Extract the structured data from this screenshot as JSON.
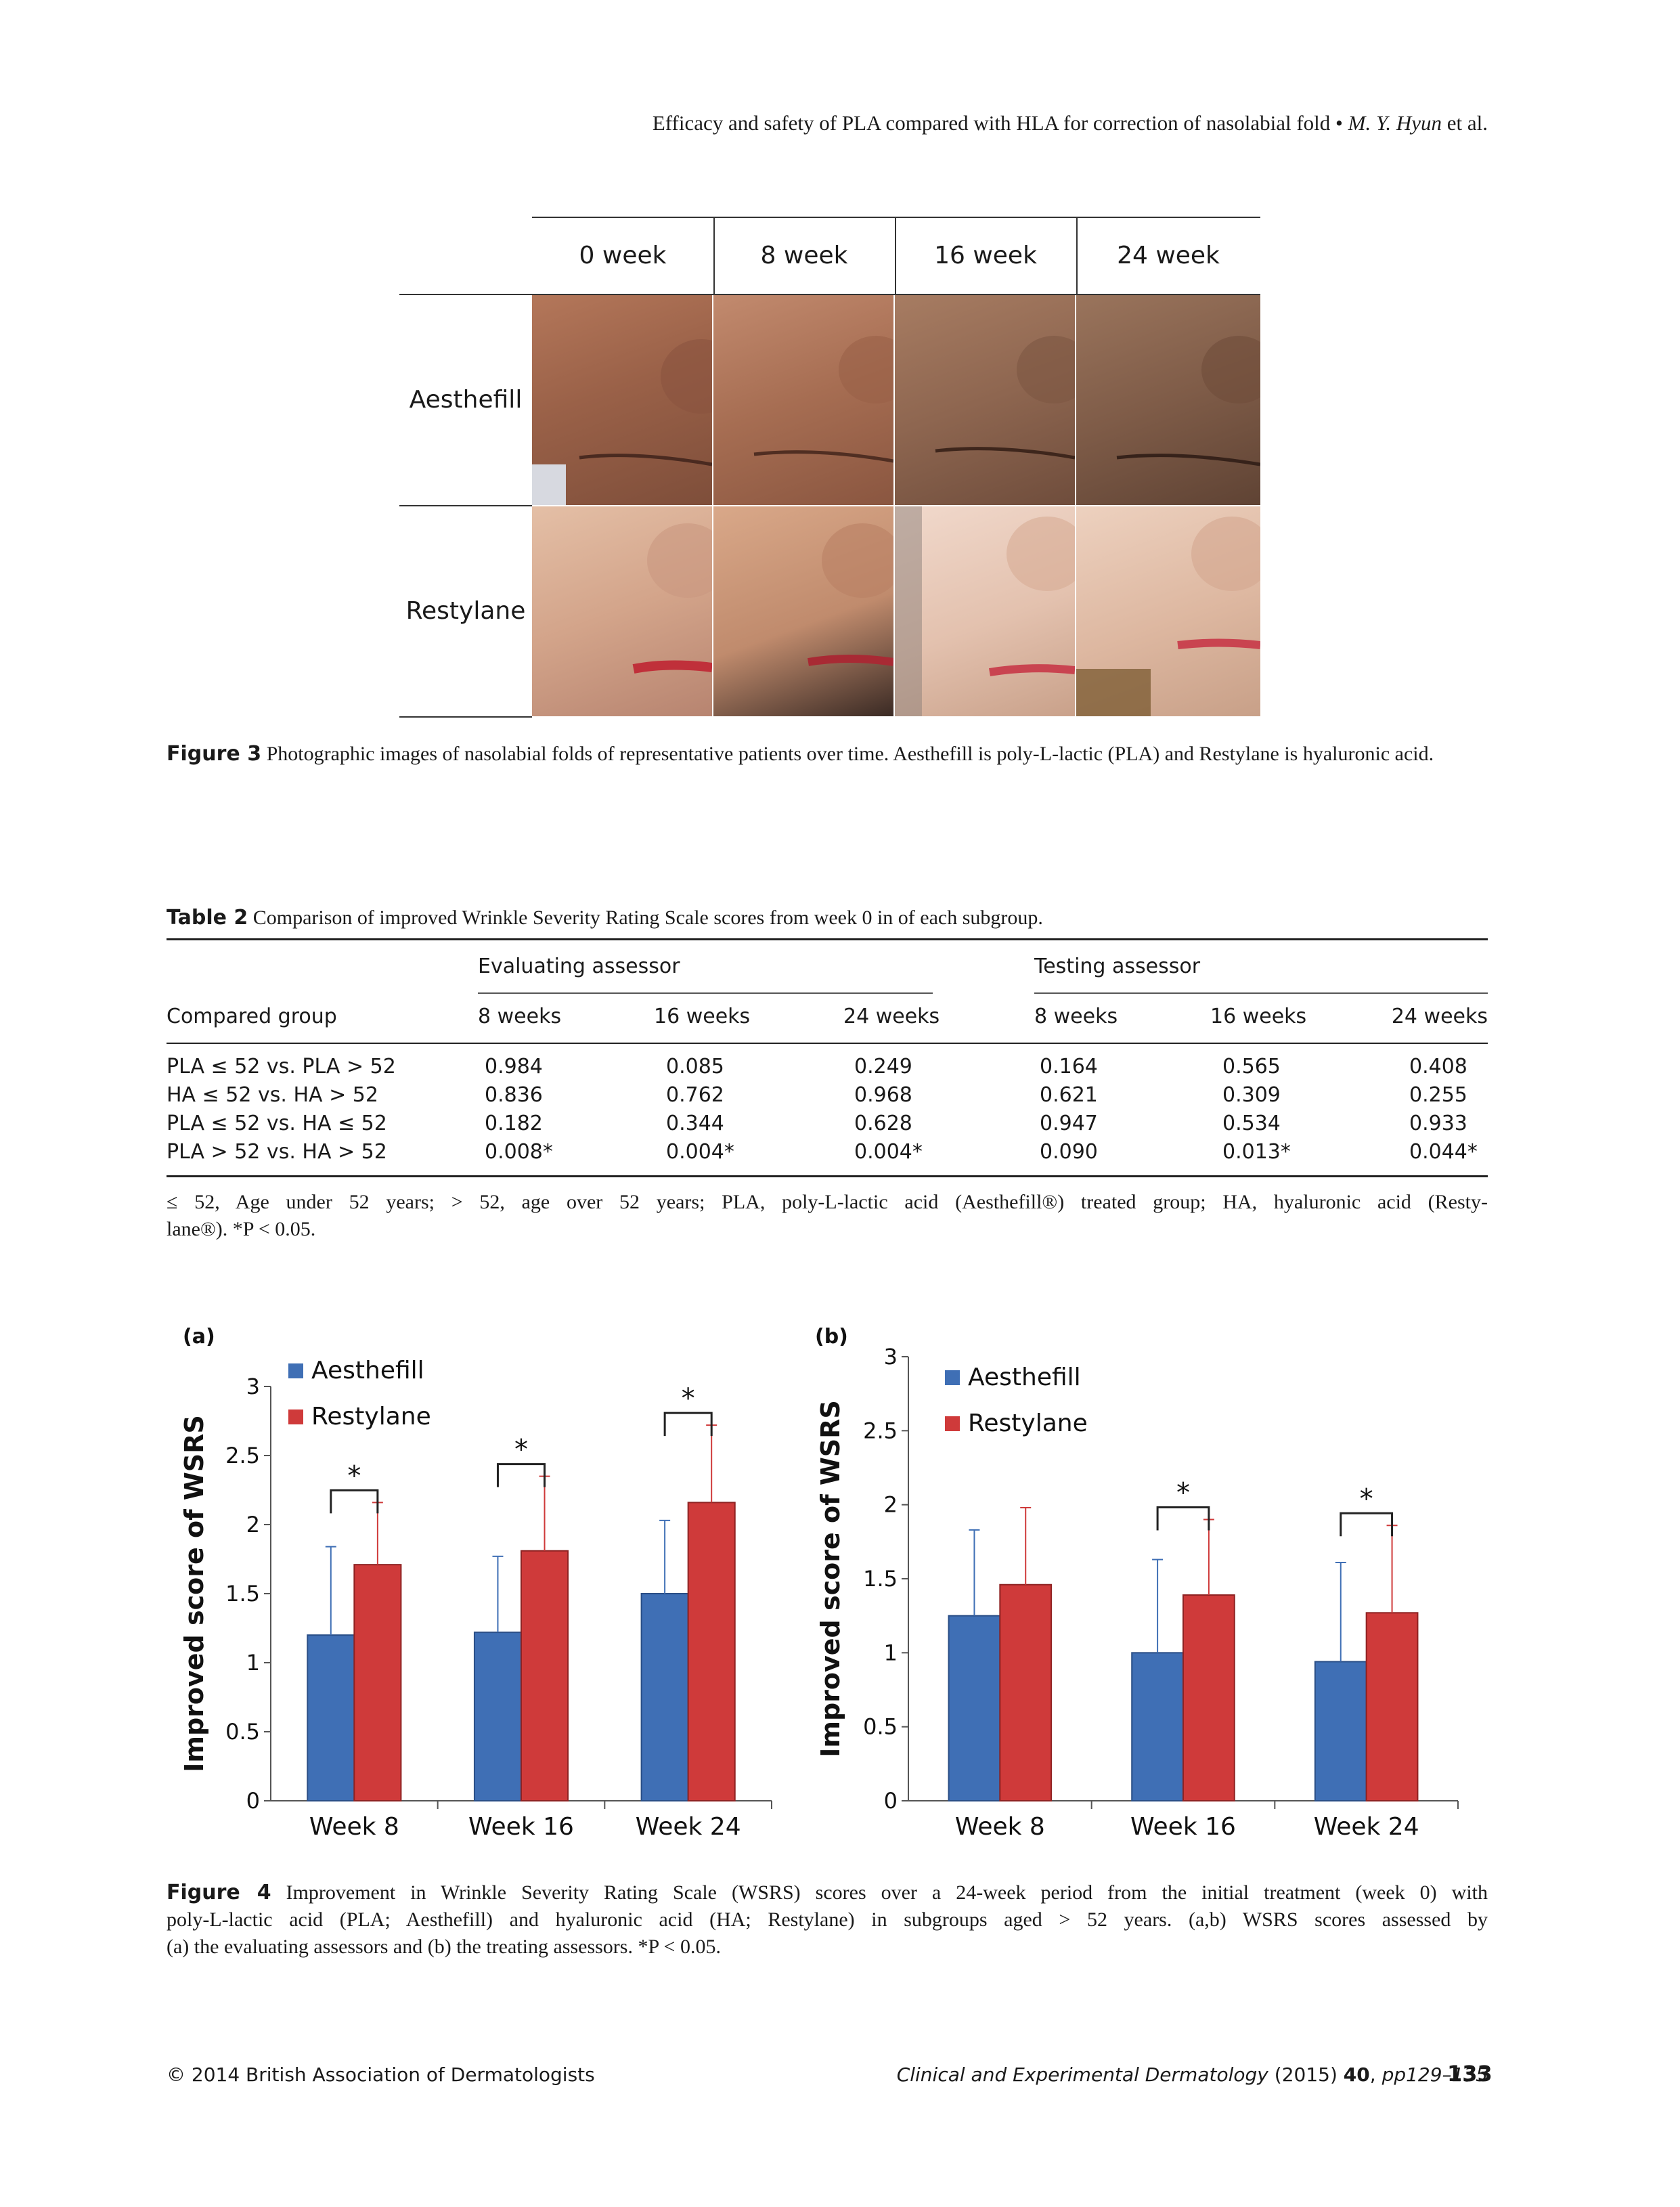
{
  "running_header": {
    "title": "Efficacy and safety of PLA compared with HLA for correction of nasolabial fold",
    "bullet": "•",
    "authors": "M. Y. Hyun",
    "suffix": "et al."
  },
  "figure3": {
    "columns": [
      "0 week",
      "8 week",
      "16 week",
      "24 week"
    ],
    "rows": [
      "Aesthefill",
      "Restylane"
    ],
    "caption_label": "Figure 3",
    "caption_text": "Photographic images of nasolabial folds of representative patients over time.  Aesthefill is poly-L-lactic (PLA) and Restylane is hyaluronic acid."
  },
  "table2": {
    "caption_label": "Table 2",
    "caption_text": "Comparison of improved Wrinkle Severity Rating Scale scores from week 0 in of each subgroup.",
    "group_headers": [
      "Evaluating assessor",
      "Testing assessor"
    ],
    "column_headers": [
      "Compared group",
      "8 weeks",
      "16 weeks",
      "24 weeks",
      "8 weeks",
      "16 weeks",
      "24 weeks"
    ],
    "rows": [
      [
        "PLA ≤ 52 vs. PLA > 52",
        "0.984",
        "0.085",
        "0.249",
        "0.164",
        "0.565",
        "0.408"
      ],
      [
        "HA ≤ 52 vs. HA > 52",
        "0.836",
        "0.762",
        "0.968",
        "0.621",
        "0.309",
        "0.255"
      ],
      [
        "PLA ≤ 52 vs. HA ≤ 52",
        "0.182",
        "0.344",
        "0.628",
        "0.947",
        "0.534",
        "0.933"
      ],
      [
        "PLA > 52 vs. HA > 52",
        "0.008*",
        "0.004*",
        "0.004*",
        "0.090",
        "0.013*",
        "0.044*"
      ]
    ],
    "footnote_line1": "≤ 52, Age under 52 years; > 52, age over 52 years; PLA, poly-L-lactic acid (Aesthefill®) treated group; HA, hyaluronic acid (Resty-",
    "footnote_line2": "lane®). *P < 0.05."
  },
  "chart_data": [
    {
      "type": "bar",
      "panel_label": "(a)",
      "categories": [
        "Week 8",
        "Week 16",
        "Week 24"
      ],
      "series": [
        {
          "name": "Aesthefill",
          "values": [
            1.2,
            1.22,
            1.5
          ],
          "error_upper": [
            0.64,
            0.55,
            0.53
          ],
          "color": "#3f6fb5"
        },
        {
          "name": "Restylane",
          "values": [
            1.71,
            1.81,
            2.16
          ],
          "error_upper": [
            0.45,
            0.54,
            0.56
          ],
          "color": "#cf3a3a"
        }
      ],
      "significance": [
        "*",
        "*",
        "*"
      ],
      "ylabel": "Improved score of WSRS",
      "ylim": [
        0,
        3
      ],
      "yticks": [
        "0",
        "0.5",
        "1",
        "1.5",
        "2",
        "2.5",
        "3"
      ],
      "legend_position": "top-left"
    },
    {
      "type": "bar",
      "panel_label": "(b)",
      "categories": [
        "Week 8",
        "Week 16",
        "Week 24"
      ],
      "series": [
        {
          "name": "Aesthefill",
          "values": [
            1.25,
            1.0,
            0.94
          ],
          "error_upper": [
            0.58,
            0.63,
            0.67
          ],
          "color": "#3f6fb5"
        },
        {
          "name": "Restylane",
          "values": [
            1.46,
            1.39,
            1.27
          ],
          "error_upper": [
            0.52,
            0.51,
            0.59
          ],
          "color": "#cf3a3a"
        }
      ],
      "significance": [
        "",
        "*",
        "*"
      ],
      "ylabel": "Improved score of WSRS",
      "ylim": [
        0,
        3
      ],
      "yticks": [
        "0",
        "0.5",
        "1",
        "1.5",
        "2",
        "2.5",
        "3"
      ],
      "legend_position": "top-left"
    }
  ],
  "figure4": {
    "caption_label": "Figure 4",
    "caption_line1": "Improvement in Wrinkle Severity Rating Scale (WSRS) scores over a 24-week period from the initial treatment (week 0) with",
    "caption_line2": "poly-L-lactic acid (PLA; Aesthefill) and hyaluronic acid (HA; Restylane) in subgroups aged > 52 years. (a,b) WSRS scores assessed by",
    "caption_line3": "(a) the evaluating assessors and (b) the treating assessors. *P < 0.05."
  },
  "footer": {
    "copyright": "© 2014 British Association of Dermatologists",
    "journal": "Clinical and Experimental Dermatology",
    "year": "(2015)",
    "volume": "40",
    "pages": "pp129–135",
    "page_number": "133"
  }
}
